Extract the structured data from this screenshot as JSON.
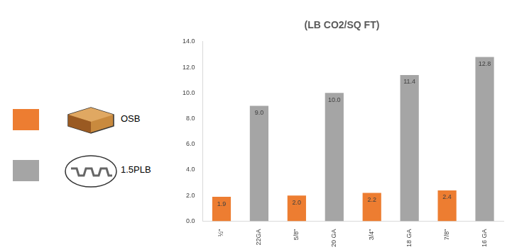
{
  "chart_data": {
    "type": "bar",
    "title": "(LB CO2/SQ FT)",
    "categories": [
      "½\"",
      "22GA",
      "5/8\"",
      "20 GA",
      "3/4\"",
      "18 GA",
      "7/8\"",
      "16 GA"
    ],
    "series": [
      {
        "name": "OSB",
        "color": "#ed7d31",
        "values": [
          1.9,
          null,
          2.0,
          null,
          2.2,
          null,
          2.4,
          null
        ],
        "value_labels": [
          "1.9",
          null,
          "2.0",
          null,
          "2.2",
          null,
          "2.4",
          null
        ]
      },
      {
        "name": "1.5PLB",
        "color": "#a5a5a5",
        "values": [
          null,
          9.0,
          null,
          10.0,
          null,
          11.4,
          null,
          12.8
        ],
        "value_labels": [
          null,
          "9.0",
          null,
          "10.0",
          null,
          "11.4",
          null,
          "12.8"
        ]
      }
    ],
    "ylim": [
      0,
      14
    ],
    "yticks": [
      {
        "value": 0,
        "label": "0.0"
      },
      {
        "value": 2,
        "label": "2.0"
      },
      {
        "value": 4,
        "label": "4.0"
      },
      {
        "value": 6,
        "label": "6.0"
      },
      {
        "value": 8,
        "label": "8.0"
      },
      {
        "value": 10,
        "label": "10.0"
      },
      {
        "value": 12,
        "label": "12.0"
      },
      {
        "value": 14,
        "label": "14.0"
      }
    ],
    "grid": false,
    "legend": "left",
    "data_labels": true
  }
}
